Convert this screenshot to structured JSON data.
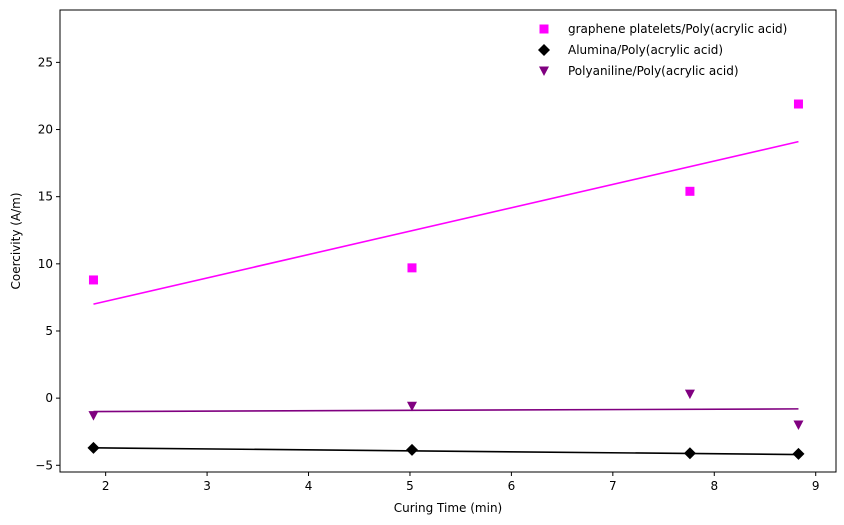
{
  "chart_data": {
    "type": "scatter",
    "title": "",
    "xlabel": "Curing Time (min)",
    "ylabel": "Coercivity (A/m)",
    "xlim": [
      1.55,
      9.2
    ],
    "ylim": [
      -5.5,
      28.9
    ],
    "xticks": [
      2,
      3,
      4,
      5,
      6,
      7,
      8,
      9
    ],
    "yticks": [
      -5,
      0,
      5,
      10,
      15,
      20,
      25
    ],
    "grid": false,
    "legend_position": "top-right",
    "series": [
      {
        "name": "graphene platelets/Poly(acrylic acid)",
        "color": "#ff00ff",
        "marker": "square",
        "x": [
          1.88,
          5.02,
          7.76,
          8.83
        ],
        "y": [
          8.8,
          9.7,
          15.4,
          21.9
        ],
        "fit": {
          "x": [
            1.88,
            8.83
          ],
          "y": [
            7.0,
            19.1
          ]
        }
      },
      {
        "name": "Alumina/Poly(acrylic acid)",
        "color": "#000000",
        "marker": "diamond",
        "x": [
          1.88,
          5.02,
          7.76,
          8.83
        ],
        "y": [
          -3.7,
          -3.85,
          -4.1,
          -4.15
        ],
        "fit": {
          "x": [
            1.88,
            8.83
          ],
          "y": [
            -3.7,
            -4.2
          ]
        }
      },
      {
        "name": "Polyaniline/Poly(acrylic acid)",
        "color": "#800080",
        "marker": "triangle-down",
        "x": [
          1.88,
          5.02,
          7.76,
          8.83
        ],
        "y": [
          -1.3,
          -0.6,
          0.3,
          -2.0
        ],
        "fit": {
          "x": [
            1.88,
            8.83
          ],
          "y": [
            -1.0,
            -0.8
          ]
        }
      }
    ]
  }
}
